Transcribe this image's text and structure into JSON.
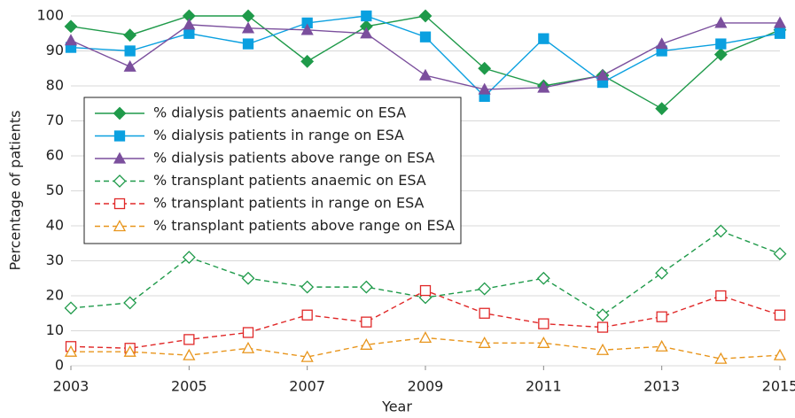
{
  "chart_data": {
    "type": "line",
    "x_label": "Year",
    "y_label": "Percentage of patients",
    "x": [
      2003,
      2004,
      2005,
      2006,
      2007,
      2008,
      2009,
      2010,
      2011,
      2012,
      2013,
      2014,
      2015
    ],
    "xlim": [
      2003,
      2015
    ],
    "xticks": [
      2003,
      2005,
      2007,
      2009,
      2011,
      2013,
      2015
    ],
    "ylim": [
      0,
      100
    ],
    "yticks": [
      0,
      10,
      20,
      30,
      40,
      50,
      60,
      70,
      80,
      90,
      100
    ],
    "grid": true,
    "legend": "center left",
    "series": [
      {
        "name": "% dialysis patients anaemic on ESA",
        "color": "#1f9a4a",
        "marker": "diamond",
        "filled": true,
        "dashed": false,
        "values": [
          97,
          94.5,
          100,
          100,
          87,
          97,
          100,
          85,
          80,
          83,
          73.5,
          89,
          96
        ]
      },
      {
        "name": "% dialysis patients in range on ESA",
        "color": "#0aa0e0",
        "marker": "square",
        "filled": true,
        "dashed": false,
        "values": [
          91,
          90,
          95,
          92,
          98,
          100,
          94,
          77,
          93.5,
          81,
          90,
          92,
          95
        ]
      },
      {
        "name": "% dialysis patients above range on ESA",
        "color": "#7b4f9d",
        "marker": "triangle",
        "filled": true,
        "dashed": false,
        "values": [
          93,
          85.5,
          97.5,
          96.5,
          96,
          95,
          83,
          79,
          79.5,
          83,
          92,
          98,
          98
        ]
      },
      {
        "name": "% transplant patients anaemic on ESA",
        "color": "#1f9a4a",
        "marker": "diamond",
        "filled": false,
        "dashed": true,
        "values": [
          16.5,
          18,
          31,
          25,
          22.5,
          22.5,
          19.5,
          22,
          25,
          14.5,
          26.5,
          38.5,
          32
        ]
      },
      {
        "name": "% transplant patients in range on ESA",
        "color": "#e02828",
        "marker": "square",
        "filled": false,
        "dashed": true,
        "values": [
          5.5,
          5,
          7.5,
          9.5,
          14.5,
          12.5,
          21.5,
          15,
          12,
          11,
          14,
          20,
          14.5
        ]
      },
      {
        "name": "% transplant patients above range on ESA",
        "color": "#e8951c",
        "marker": "triangle",
        "filled": false,
        "dashed": true,
        "values": [
          4,
          4,
          3,
          5,
          2.5,
          6,
          8,
          6.5,
          6.5,
          4.5,
          5.5,
          2,
          3
        ]
      }
    ]
  }
}
